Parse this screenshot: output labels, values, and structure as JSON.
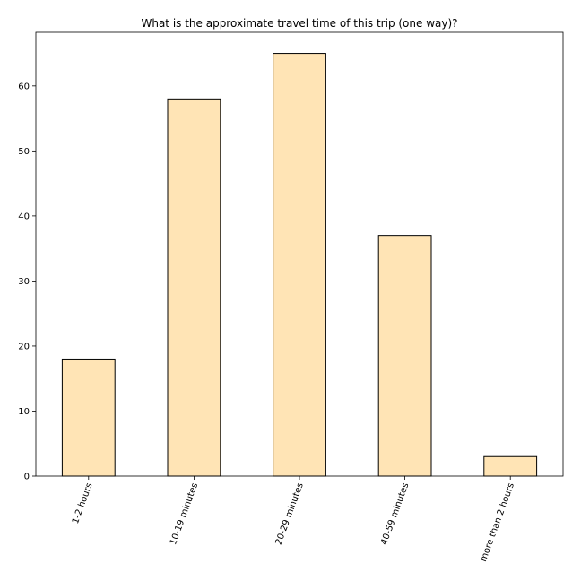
{
  "chart_data": {
    "type": "bar",
    "title": "What is the approximate travel time of this trip (one way)?",
    "xlabel": "",
    "ylabel": "",
    "categories": [
      "1-2 hours",
      "10-19 minutes",
      "20-29 minutes",
      "40-59 minutes",
      "more than 2 hours"
    ],
    "values": [
      18,
      58,
      65,
      37,
      3
    ],
    "ylim": [
      0,
      68.25
    ],
    "yticks": [
      0,
      10,
      20,
      30,
      40,
      50,
      60
    ],
    "ytick_labels": [
      "0",
      "10",
      "20",
      "30",
      "40",
      "50",
      "60"
    ],
    "bar_color": "#FFE4B5",
    "edge_color": "#000000",
    "grid": false,
    "legend": "none"
  }
}
